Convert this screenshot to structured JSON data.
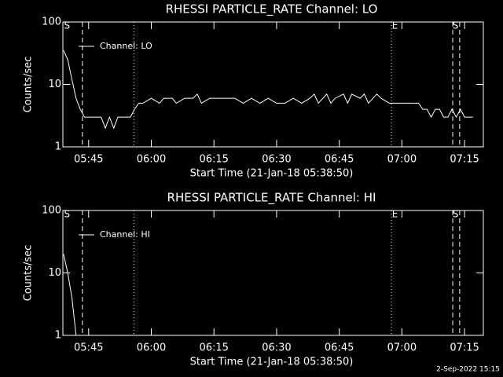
{
  "chart_data": [
    {
      "type": "line",
      "title": "RHESSI PARTICLE_RATE Channel: LO",
      "xlabel": "Start Time (21-Jan-18 05:38:50)",
      "ylabel": "Counts/sec",
      "x": [
        "05:39",
        "05:40",
        "05:41",
        "05:42",
        "05:43",
        "05:44",
        "05:46",
        "05:48",
        "05:49",
        "05:50",
        "05:51",
        "05:52",
        "05:54",
        "05:55",
        "05:56",
        "05:57",
        "05:58",
        "06:00",
        "06:02",
        "06:03",
        "06:05",
        "06:06",
        "06:08",
        "06:10",
        "06:11",
        "06:12",
        "06:14",
        "06:16",
        "06:18",
        "06:20",
        "06:22",
        "06:24",
        "06:26",
        "06:28",
        "06:30",
        "06:32",
        "06:34",
        "06:36",
        "06:38",
        "06:39",
        "06:40",
        "06:42",
        "06:43",
        "06:44",
        "06:46",
        "06:47",
        "06:48",
        "06:50",
        "06:51",
        "06:52",
        "06:54",
        "06:55",
        "06:57",
        "06:58",
        "07:00",
        "07:02",
        "07:04",
        "07:05",
        "07:06",
        "07:07",
        "07:08",
        "07:09",
        "07:10",
        "07:11",
        "07:12",
        "07:13",
        "07:14",
        "07:15",
        "07:16",
        "07:17"
      ],
      "series": [
        {
          "name": "Channel: LO",
          "color": "#ffffff",
          "values": [
            35,
            25,
            12,
            6,
            4,
            3,
            3,
            3,
            2,
            3,
            2,
            3,
            3,
            3,
            4,
            5,
            5,
            6,
            5,
            6,
            6,
            5,
            6,
            6,
            7,
            5,
            6,
            6,
            6,
            6,
            5,
            6,
            5,
            6,
            5,
            5,
            6,
            5,
            6,
            7,
            5,
            7,
            5,
            6,
            7,
            5,
            7,
            6,
            7,
            5,
            7,
            6,
            5,
            5,
            5,
            5,
            5,
            4,
            4,
            3,
            4,
            4,
            3,
            3,
            4,
            3,
            4,
            3,
            3,
            3
          ]
        }
      ],
      "xlim": [
        "05:38:50",
        "07:19:30"
      ],
      "xticks": [
        "05:45",
        "06:00",
        "06:15",
        "06:30",
        "06:45",
        "07:00",
        "07:15"
      ],
      "ylim": [
        1,
        100
      ],
      "yticks": [
        1,
        10,
        100
      ],
      "log_y": true,
      "markers": [
        {
          "x": "05:43:30",
          "style": "dashed"
        },
        {
          "x": "05:55:50",
          "style": "dotted"
        },
        {
          "x": "06:57:30",
          "style": "dotted"
        },
        {
          "x": "07:12:10",
          "style": "dashed"
        },
        {
          "x": "07:13:50",
          "style": "dashed"
        }
      ],
      "marker_labels": [
        {
          "text": "S",
          "x": "05:39:50"
        },
        {
          "text": "E",
          "x": "06:58:20"
        },
        {
          "text": "S",
          "x": "07:12:50"
        }
      ]
    },
    {
      "type": "line",
      "title": "RHESSI PARTICLE_RATE Channel: HI",
      "xlabel": "Start Time (21-Jan-18 05:38:50)",
      "ylabel": "Counts/sec",
      "x": [
        "05:39",
        "05:40",
        "05:41",
        "05:42"
      ],
      "series": [
        {
          "name": "Channel: HI",
          "color": "#ffffff",
          "values": [
            20,
            10,
            4,
            1
          ]
        }
      ],
      "xlim": [
        "05:38:50",
        "07:19:30"
      ],
      "xticks": [
        "05:45",
        "06:00",
        "06:15",
        "06:30",
        "06:45",
        "07:00",
        "07:15"
      ],
      "ylim": [
        1,
        100
      ],
      "yticks": [
        1,
        10,
        100
      ],
      "log_y": true,
      "markers": [
        {
          "x": "05:43:30",
          "style": "dashed"
        },
        {
          "x": "05:55:50",
          "style": "dotted"
        },
        {
          "x": "06:57:30",
          "style": "dotted"
        },
        {
          "x": "07:12:10",
          "style": "dashed"
        },
        {
          "x": "07:13:50",
          "style": "dashed"
        }
      ],
      "marker_labels": [
        {
          "text": "S",
          "x": "05:39:50"
        },
        {
          "text": "E",
          "x": "06:58:20"
        },
        {
          "text": "S",
          "x": "07:12:50"
        }
      ]
    }
  ],
  "footer": "2-Sep-2022 15:15"
}
